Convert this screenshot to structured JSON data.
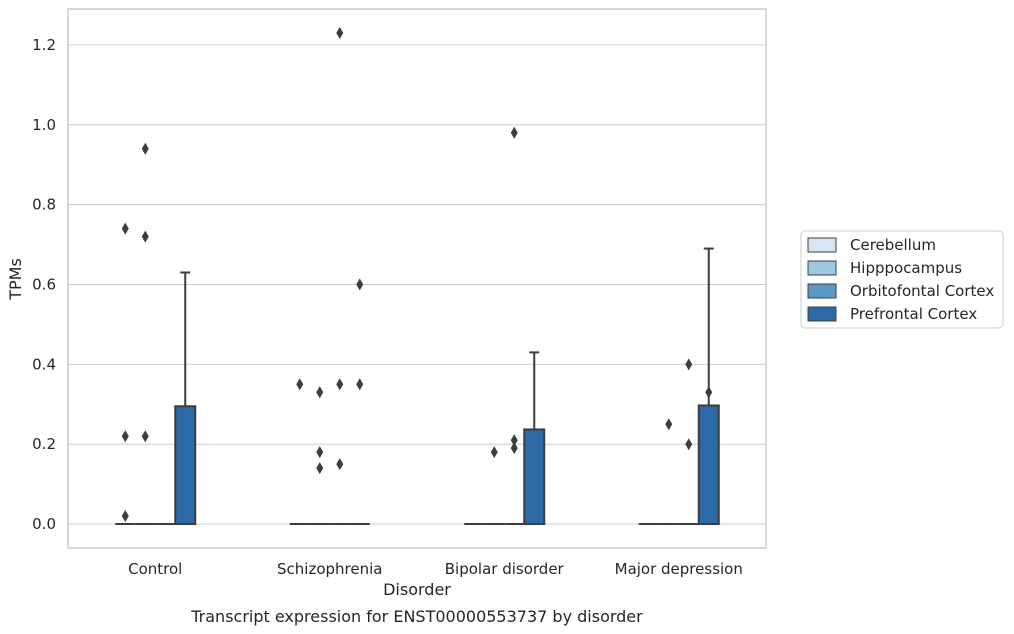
{
  "chart_data": {
    "type": "box",
    "xlabel": "Disorder",
    "ylabel": "TPMs",
    "caption": "Transcript expression for ENST00000553737 by disorder",
    "categories": [
      "Control",
      "Schizophrenia",
      "Bipolar disorder",
      "Major depression"
    ],
    "yticks": [
      "0.0",
      "0.2",
      "0.4",
      "0.6",
      "0.8",
      "1.0",
      "1.2"
    ],
    "ylim": [
      -0.06,
      1.29
    ],
    "grid": "horizontal",
    "legend_position": "right",
    "series": [
      {
        "name": "Cerebellum",
        "color": "#d6e6f4",
        "boxes": [
          {
            "q1": 0,
            "median": 0,
            "q3": 0,
            "whisker_low": 0,
            "whisker_high": 0,
            "outliers": [
              0.02,
              0.22,
              0.74
            ]
          },
          {
            "q1": 0,
            "median": 0,
            "q3": 0,
            "whisker_low": 0,
            "whisker_high": 0,
            "outliers": [
              0.35
            ]
          },
          {
            "q1": 0,
            "median": 0,
            "q3": 0,
            "whisker_low": 0,
            "whisker_high": 0,
            "outliers": []
          },
          {
            "q1": 0,
            "median": 0,
            "q3": 0,
            "whisker_low": 0,
            "whisker_high": 0,
            "outliers": []
          }
        ]
      },
      {
        "name": "Hipppocampus",
        "color": "#9cc9e1",
        "boxes": [
          {
            "q1": 0,
            "median": 0,
            "q3": 0,
            "whisker_low": 0,
            "whisker_high": 0,
            "outliers": [
              0.22,
              0.72,
              0.94
            ]
          },
          {
            "q1": 0,
            "median": 0,
            "q3": 0,
            "whisker_low": 0,
            "whisker_high": 0,
            "outliers": [
              0.14,
              0.18,
              0.33
            ]
          },
          {
            "q1": 0,
            "median": 0,
            "q3": 0,
            "whisker_low": 0,
            "whisker_high": 0,
            "outliers": [
              0.18
            ]
          },
          {
            "q1": 0,
            "median": 0,
            "q3": 0,
            "whisker_low": 0,
            "whisker_high": 0,
            "outliers": [
              0.25
            ]
          }
        ]
      },
      {
        "name": "Orbitofontal Cortex",
        "color": "#5b9ac7",
        "boxes": [
          {
            "q1": 0,
            "median": 0,
            "q3": 0,
            "whisker_low": 0,
            "whisker_high": 0,
            "outliers": []
          },
          {
            "q1": 0,
            "median": 0,
            "q3": 0,
            "whisker_low": 0,
            "whisker_high": 0,
            "outliers": [
              0.15,
              0.35,
              1.23
            ]
          },
          {
            "q1": 0,
            "median": 0,
            "q3": 0,
            "whisker_low": 0,
            "whisker_high": 0,
            "outliers": [
              0.19,
              0.21,
              0.98
            ]
          },
          {
            "q1": 0,
            "median": 0,
            "q3": 0,
            "whisker_low": 0,
            "whisker_high": 0,
            "outliers": [
              0.2,
              0.4
            ]
          }
        ]
      },
      {
        "name": "Prefrontal Cortex",
        "color": "#2b6aa4",
        "boxes": [
          {
            "q1": 0,
            "median": 0,
            "q3": 0.295,
            "whisker_low": 0,
            "whisker_high": 0.63,
            "outliers": []
          },
          {
            "q1": 0,
            "median": 0,
            "q3": 0,
            "whisker_low": 0,
            "whisker_high": 0,
            "outliers": [
              0.35,
              0.6
            ]
          },
          {
            "q1": 0,
            "median": 0,
            "q3": 0.237,
            "whisker_low": 0,
            "whisker_high": 0.43,
            "outliers": []
          },
          {
            "q1": 0,
            "median": 0,
            "q3": 0.297,
            "whisker_low": 0,
            "whisker_high": 0.69,
            "outliers": [
              0.33
            ]
          }
        ]
      }
    ]
  }
}
